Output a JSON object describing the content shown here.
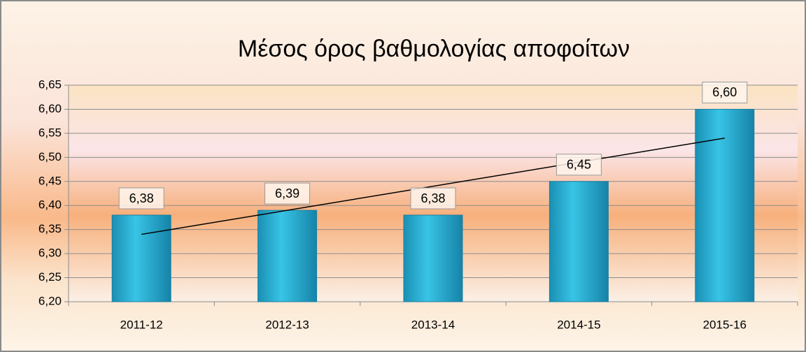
{
  "chart_data": {
    "type": "bar",
    "title": "Μέσος όρος βαθμολογίας αποφοίτων",
    "categories": [
      "2011-12",
      "2012-13",
      "2013-14",
      "2014-15",
      "2015-16"
    ],
    "values": [
      6.38,
      6.39,
      6.38,
      6.45,
      6.6
    ],
    "value_labels": [
      "6,38",
      "6,39",
      "6,38",
      "6,45",
      "6,60"
    ],
    "color": "#2bb3d6",
    "ylim": [
      6.2,
      6.65
    ],
    "yticks": [
      {
        "value": 6.2,
        "label": "6,20"
      },
      {
        "value": 6.25,
        "label": "6,25"
      },
      {
        "value": 6.3,
        "label": "6,30"
      },
      {
        "value": 6.35,
        "label": "6,35"
      },
      {
        "value": 6.4,
        "label": "6,40"
      },
      {
        "value": 6.45,
        "label": "6,45"
      },
      {
        "value": 6.5,
        "label": "6,50"
      },
      {
        "value": 6.55,
        "label": "6,55"
      },
      {
        "value": 6.6,
        "label": "6,60"
      },
      {
        "value": 6.65,
        "label": "6,65"
      }
    ],
    "grid": true,
    "trendline": {
      "start": 6.34,
      "end": 6.54
    }
  }
}
